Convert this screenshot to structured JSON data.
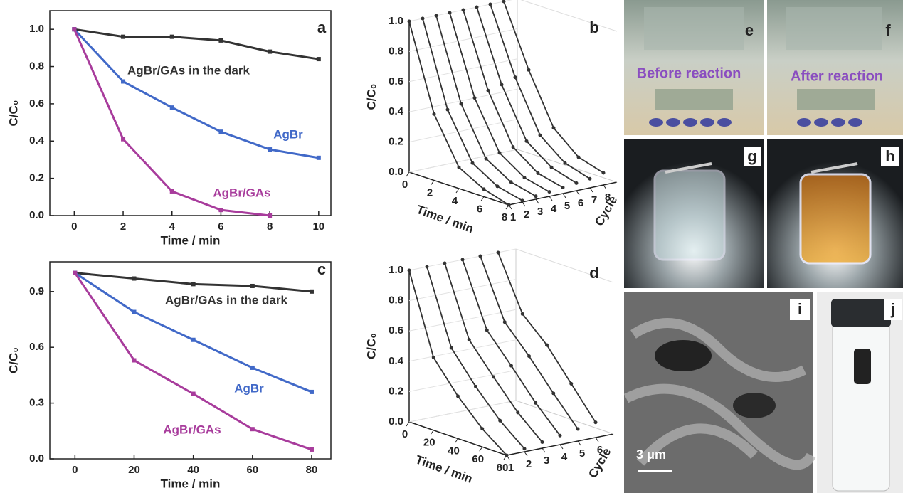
{
  "chart_data": [
    {
      "type": "line",
      "panel": "a",
      "xlabel": "Time / min",
      "ylabel": "C/C₀",
      "x": [
        0,
        2,
        4,
        6,
        8,
        10
      ],
      "xlim": [
        -1,
        10.5
      ],
      "xticks": [
        0,
        2,
        4,
        6,
        8,
        10
      ],
      "ylim": [
        0,
        1.1
      ],
      "yticks": [
        {
          "value": 0,
          "label": "0.0"
        },
        {
          "value": 0.2,
          "label": "0.2"
        },
        {
          "value": 0.4,
          "label": "0.4"
        },
        {
          "value": 0.6,
          "label": "0.6"
        },
        {
          "value": 0.8,
          "label": "0.8"
        },
        {
          "value": 1.0,
          "label": "1.0"
        }
      ],
      "series": [
        {
          "name": "AgBr/GAs in the dark",
          "color": "#333333",
          "values": [
            1.0,
            0.96,
            0.96,
            0.94,
            0.88,
            0.84
          ]
        },
        {
          "name": "AgBr",
          "color": "#4169c8",
          "values": [
            1.0,
            0.72,
            0.58,
            0.45,
            0.355,
            0.31
          ]
        },
        {
          "name": "AgBr/GAs",
          "color": "#a83c9c",
          "values": [
            1.0,
            0.41,
            0.13,
            0.03,
            0.0,
            null
          ]
        }
      ]
    },
    {
      "type": "waterfall3d",
      "panel": "b",
      "xlabel": "Time / min",
      "ylabel": "Cycle",
      "zlabel": "C/C₀",
      "color": "#333333",
      "x": [
        0,
        2,
        4,
        6,
        8
      ],
      "xlim": [
        0,
        8
      ],
      "xticks": [
        0,
        2,
        4,
        6,
        8
      ],
      "cycles": [
        1,
        2,
        3,
        4,
        5,
        6,
        7,
        8
      ],
      "zlim": [
        0,
        1.0
      ],
      "zticks": [
        {
          "value": 0,
          "label": "0.0"
        },
        {
          "value": 0.2,
          "label": "0.2"
        },
        {
          "value": 0.4,
          "label": "0.4"
        },
        {
          "value": 0.6,
          "label": "0.6"
        },
        {
          "value": 0.8,
          "label": "0.8"
        },
        {
          "value": 1.0,
          "label": "1.0"
        }
      ],
      "series": [
        {
          "values": [
            1.0,
            0.44,
            0.14,
            0.05,
            0.0
          ]
        },
        {
          "values": [
            1.0,
            0.45,
            0.15,
            0.05,
            0.01
          ]
        },
        {
          "values": [
            1.0,
            0.47,
            0.16,
            0.06,
            0.02
          ]
        },
        {
          "values": [
            1.0,
            0.49,
            0.18,
            0.07,
            0.03
          ]
        },
        {
          "values": [
            1.0,
            0.52,
            0.2,
            0.08,
            0.04
          ]
        },
        {
          "values": [
            1.0,
            0.54,
            0.22,
            0.1,
            0.05
          ]
        },
        {
          "values": [
            1.0,
            0.57,
            0.24,
            0.11,
            0.06
          ]
        },
        {
          "values": [
            1.0,
            0.6,
            0.27,
            0.13,
            0.08
          ]
        }
      ]
    },
    {
      "type": "line",
      "panel": "c",
      "xlabel": "Time / min",
      "ylabel": "C/C₀",
      "x": [
        0,
        20,
        40,
        60,
        80
      ],
      "xlim": [
        -8.5,
        86.5
      ],
      "xticks": [
        0,
        20,
        40,
        60,
        80
      ],
      "ylim": [
        0,
        1.06
      ],
      "yticks": [
        {
          "value": 0,
          "label": "0.0"
        },
        {
          "value": 0.3,
          "label": "0.3"
        },
        {
          "value": 0.6,
          "label": "0.6"
        },
        {
          "value": 0.9,
          "label": "0.9"
        }
      ],
      "series": [
        {
          "name": "AgBr/GAs in the dark",
          "color": "#333333",
          "values": [
            1.0,
            0.97,
            0.94,
            0.93,
            0.9
          ]
        },
        {
          "name": "AgBr",
          "color": "#4169c8",
          "values": [
            1.0,
            0.79,
            0.64,
            0.49,
            0.36
          ]
        },
        {
          "name": "AgBr/GAs",
          "color": "#a83c9c",
          "values": [
            1.0,
            0.53,
            0.35,
            0.16,
            0.05
          ]
        }
      ]
    },
    {
      "type": "waterfall3d",
      "panel": "d",
      "xlabel": "Time / min",
      "ylabel": "Cycle",
      "zlabel": "C/C₀",
      "color": "#333333",
      "x": [
        0,
        20,
        40,
        60,
        80
      ],
      "xlim": [
        0,
        80
      ],
      "xticks": [
        0,
        20,
        40,
        60,
        80
      ],
      "cycles": [
        1,
        2,
        3,
        4,
        5,
        6
      ],
      "zlim": [
        0,
        1.0
      ],
      "zticks": [
        {
          "value": 0,
          "label": "0.0"
        },
        {
          "value": 0.2,
          "label": "0.2"
        },
        {
          "value": 0.4,
          "label": "0.4"
        },
        {
          "value": 0.6,
          "label": "0.6"
        },
        {
          "value": 0.8,
          "label": "0.8"
        },
        {
          "value": 1.0,
          "label": "1.0"
        }
      ],
      "series": [
        {
          "values": [
            1.0,
            0.48,
            0.28,
            0.12,
            0.0
          ]
        },
        {
          "values": [
            1.0,
            0.52,
            0.32,
            0.15,
            0.02
          ]
        },
        {
          "values": [
            1.0,
            0.55,
            0.36,
            0.18,
            0.04
          ]
        },
        {
          "values": [
            1.0,
            0.59,
            0.41,
            0.22,
            0.06
          ]
        },
        {
          "values": [
            1.0,
            0.62,
            0.45,
            0.26,
            0.08
          ]
        },
        {
          "values": [
            1.0,
            0.65,
            0.5,
            0.3,
            0.1
          ]
        }
      ]
    }
  ],
  "photos": {
    "e": {
      "panel": "e",
      "caption": "Before reaction"
    },
    "f": {
      "panel": "f",
      "caption": "After reaction"
    },
    "g": {
      "panel": "g"
    },
    "h": {
      "panel": "h"
    },
    "i": {
      "panel": "i",
      "scale": "3 μm"
    },
    "j": {
      "panel": "j"
    }
  }
}
